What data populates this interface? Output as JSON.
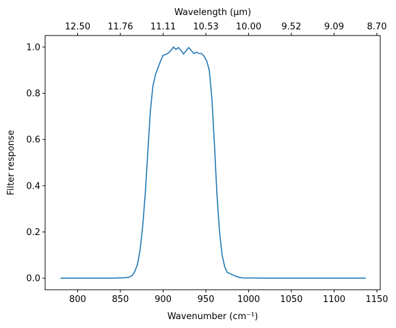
{
  "chart_data": {
    "type": "line",
    "xlabel": "Wavenumber (cm⁻¹)",
    "ylabel": "Filter response",
    "secondary_xlabel": "Wavelength (μm)",
    "xlim": [
      762,
      1154
    ],
    "ylim": [
      -0.05,
      1.05
    ],
    "x_ticks": [
      800,
      850,
      900,
      950,
      1000,
      1050,
      1100,
      1150
    ],
    "y_ticks": [
      0.0,
      0.2,
      0.4,
      0.6,
      0.8,
      1.0
    ],
    "y_tick_labels": [
      "0.0",
      "0.2",
      "0.4",
      "0.6",
      "0.8",
      "1.0"
    ],
    "top_ticks": [
      {
        "label": "12.50",
        "x": 800
      },
      {
        "label": "11.76",
        "x": 850
      },
      {
        "label": "11.11",
        "x": 900
      },
      {
        "label": "10.53",
        "x": 950
      },
      {
        "label": "10.00",
        "x": 1000
      },
      {
        "label": "9.52",
        "x": 1050
      },
      {
        "label": "9.09",
        "x": 1100
      },
      {
        "label": "8.70",
        "x": 1150
      }
    ],
    "grid": false,
    "series_color": "#1f77b4",
    "x": [
      780,
      800,
      820,
      840,
      855,
      860,
      864,
      867,
      870,
      873,
      876,
      879,
      882,
      885,
      888,
      891,
      894,
      897,
      900,
      903,
      906,
      909,
      912,
      915,
      918,
      921,
      924,
      927,
      930,
      933,
      936,
      939,
      942,
      945,
      948,
      951,
      954,
      957,
      960,
      963,
      966,
      969,
      972,
      975,
      978,
      981,
      984,
      987,
      990,
      993,
      996,
      1000,
      1005,
      1020,
      1050,
      1100,
      1137
    ],
    "y": [
      0.0,
      0.0,
      0.0,
      0.0,
      0.002,
      0.004,
      0.012,
      0.03,
      0.06,
      0.12,
      0.22,
      0.36,
      0.54,
      0.72,
      0.83,
      0.88,
      0.91,
      0.94,
      0.965,
      0.968,
      0.974,
      0.985,
      1.0,
      0.99,
      0.998,
      0.985,
      0.97,
      0.985,
      0.998,
      0.985,
      0.972,
      0.978,
      0.972,
      0.972,
      0.96,
      0.94,
      0.9,
      0.78,
      0.58,
      0.36,
      0.2,
      0.1,
      0.05,
      0.025,
      0.02,
      0.015,
      0.01,
      0.006,
      0.003,
      0.001,
      0.001,
      0.001,
      0.001,
      0.0,
      0.0,
      0.0,
      0.0
    ]
  }
}
